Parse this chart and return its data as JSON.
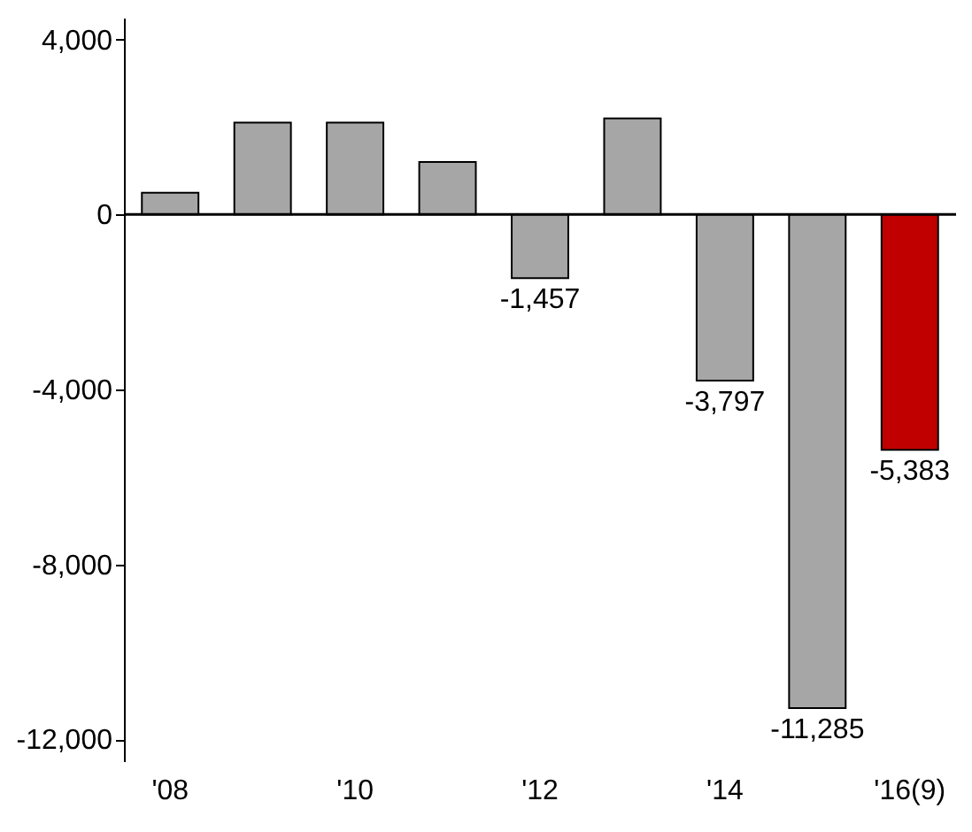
{
  "chart_data": {
    "type": "bar",
    "categories": [
      "'08",
      null,
      "'10",
      null,
      "'12",
      null,
      "'14",
      null,
      "'16(9)"
    ],
    "values": [
      500,
      2100,
      2100,
      1200,
      -1457,
      2200,
      -3797,
      -11285,
      -5383
    ],
    "colors": [
      "#a6a6a6",
      "#a6a6a6",
      "#a6a6a6",
      "#a6a6a6",
      "#a6a6a6",
      "#a6a6a6",
      "#a6a6a6",
      "#a6a6a6",
      "#c00000"
    ],
    "value_labels": [
      null,
      null,
      null,
      null,
      "-1,457",
      null,
      "-3,797",
      "-11,285",
      "-5,383"
    ],
    "ylim": [
      -12500,
      4500
    ],
    "yticks": [
      {
        "value": 4000,
        "label": "4,000"
      },
      {
        "value": 0,
        "label": "0"
      },
      {
        "value": -4000,
        "label": "-4,000"
      },
      {
        "value": -8000,
        "label": "-8,000"
      },
      {
        "value": -12000,
        "label": "-12,000"
      }
    ],
    "ref_lines": [
      {
        "axis": "y",
        "value": 0
      }
    ],
    "grid": false
  }
}
